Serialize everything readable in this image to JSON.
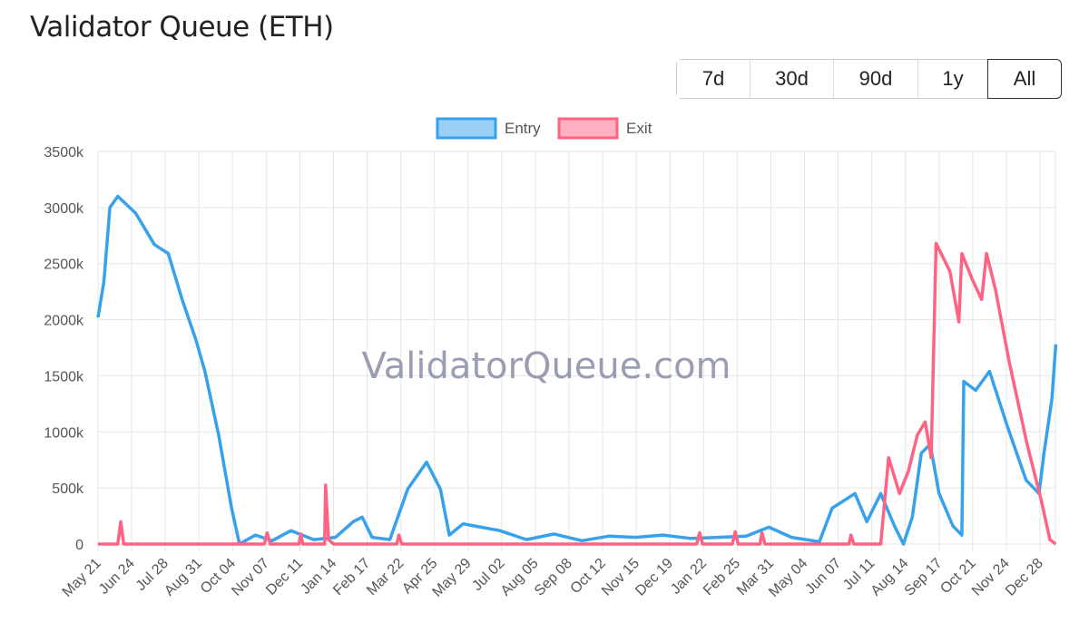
{
  "header": {
    "title": "Validator Queue (ETH)"
  },
  "range_buttons": [
    {
      "label": "7d"
    },
    {
      "label": "30d"
    },
    {
      "label": "90d"
    },
    {
      "label": "1y"
    },
    {
      "label": "All",
      "selected": true
    }
  ],
  "chart_data": {
    "type": "line",
    "title": "Validator Queue (ETH)",
    "watermark": "ValidatorQueue.com",
    "legend_position": "top",
    "grid": true,
    "ylim": [
      0,
      3500000
    ],
    "y_ticks": [
      "0",
      "500k",
      "1000k",
      "1500k",
      "2000k",
      "2500k",
      "3000k",
      "3500k"
    ],
    "y_tick_values": [
      0,
      500000,
      1000000,
      1500000,
      2000000,
      2500000,
      3000000,
      3500000
    ],
    "x_ticks": [
      {
        "label": "May 21",
        "date": "2023-05-21"
      },
      {
        "label": "Jun 24",
        "date": "2023-06-24"
      },
      {
        "label": "Jul 28",
        "date": "2023-07-28"
      },
      {
        "label": "Aug 31",
        "date": "2023-08-31"
      },
      {
        "label": "Oct 04",
        "date": "2023-10-04"
      },
      {
        "label": "Nov 07",
        "date": "2023-11-07"
      },
      {
        "label": "Dec 11",
        "date": "2023-12-11"
      },
      {
        "label": "Jan 14",
        "date": "2024-01-14"
      },
      {
        "label": "Feb 17",
        "date": "2024-02-17"
      },
      {
        "label": "Mar 22",
        "date": "2024-03-22"
      },
      {
        "label": "Apr 25",
        "date": "2024-04-25"
      },
      {
        "label": "May 29",
        "date": "2024-05-29"
      },
      {
        "label": "Jul 02",
        "date": "2024-07-02"
      },
      {
        "label": "Aug 05",
        "date": "2024-08-05"
      },
      {
        "label": "Sep 08",
        "date": "2024-09-08"
      },
      {
        "label": "Oct 12",
        "date": "2024-10-12"
      },
      {
        "label": "Nov 15",
        "date": "2024-11-15"
      },
      {
        "label": "Dec 19",
        "date": "2024-12-19"
      },
      {
        "label": "Jan 22",
        "date": "2025-01-22"
      },
      {
        "label": "Feb 25",
        "date": "2025-02-25"
      },
      {
        "label": "Mar 31",
        "date": "2025-03-31"
      },
      {
        "label": "May 04",
        "date": "2025-05-04"
      },
      {
        "label": "Jun 07",
        "date": "2025-06-07"
      },
      {
        "label": "Jul 11",
        "date": "2025-07-11"
      },
      {
        "label": "Aug 14",
        "date": "2025-08-14"
      },
      {
        "label": "Sep 17",
        "date": "2025-09-17"
      },
      {
        "label": "Oct 21",
        "date": "2025-10-21"
      },
      {
        "label": "Nov 24",
        "date": "2025-11-24"
      },
      {
        "label": "Dec 28",
        "date": "2025-12-28"
      }
    ],
    "x_range": [
      "2023-05-21",
      "2026-01-13"
    ],
    "series": [
      {
        "name": "Entry",
        "color": "#36a2eb",
        "fill": "#9ad0f5",
        "points": [
          [
            "2023-05-21",
            2020000
          ],
          [
            "2023-05-27",
            2340000
          ],
          [
            "2023-06-02",
            3000000
          ],
          [
            "2023-06-10",
            3100000
          ],
          [
            "2023-06-28",
            2950000
          ],
          [
            "2023-07-17",
            2670000
          ],
          [
            "2023-07-31",
            2590000
          ],
          [
            "2023-08-14",
            2180000
          ],
          [
            "2023-08-28",
            1820000
          ],
          [
            "2023-09-06",
            1540000
          ],
          [
            "2023-09-20",
            970000
          ],
          [
            "2023-10-03",
            320000
          ],
          [
            "2023-10-11",
            0
          ],
          [
            "2023-10-27",
            80000
          ],
          [
            "2023-11-13",
            30000
          ],
          [
            "2023-12-02",
            120000
          ],
          [
            "2023-12-25",
            40000
          ],
          [
            "2024-01-16",
            60000
          ],
          [
            "2024-02-03",
            200000
          ],
          [
            "2024-02-12",
            240000
          ],
          [
            "2024-02-22",
            60000
          ],
          [
            "2024-03-11",
            40000
          ],
          [
            "2024-03-29",
            490000
          ],
          [
            "2024-04-17",
            730000
          ],
          [
            "2024-05-01",
            490000
          ],
          [
            "2024-05-10",
            80000
          ],
          [
            "2024-05-24",
            180000
          ],
          [
            "2024-06-11",
            150000
          ],
          [
            "2024-06-30",
            120000
          ],
          [
            "2024-07-27",
            40000
          ],
          [
            "2024-08-24",
            90000
          ],
          [
            "2024-09-21",
            30000
          ],
          [
            "2024-10-18",
            70000
          ],
          [
            "2024-11-14",
            60000
          ],
          [
            "2024-12-12",
            80000
          ],
          [
            "2025-01-09",
            50000
          ],
          [
            "2025-02-06",
            60000
          ],
          [
            "2025-03-06",
            70000
          ],
          [
            "2025-03-29",
            150000
          ],
          [
            "2025-04-21",
            60000
          ],
          [
            "2025-05-19",
            20000
          ],
          [
            "2025-06-01",
            320000
          ],
          [
            "2025-06-24",
            450000
          ],
          [
            "2025-07-06",
            200000
          ],
          [
            "2025-07-20",
            450000
          ],
          [
            "2025-08-03",
            160000
          ],
          [
            "2025-08-12",
            0
          ],
          [
            "2025-08-21",
            240000
          ],
          [
            "2025-08-30",
            810000
          ],
          [
            "2025-09-08",
            890000
          ],
          [
            "2025-09-17",
            450000
          ],
          [
            "2025-10-01",
            160000
          ],
          [
            "2025-10-10",
            80000
          ],
          [
            "2025-10-12",
            1450000
          ],
          [
            "2025-10-24",
            1370000
          ],
          [
            "2025-11-07",
            1540000
          ],
          [
            "2025-11-25",
            1050000
          ],
          [
            "2025-12-14",
            570000
          ],
          [
            "2025-12-27",
            450000
          ],
          [
            "2026-01-01",
            810000
          ],
          [
            "2026-01-09",
            1290000
          ],
          [
            "2026-01-13",
            1780000
          ]
        ]
      },
      {
        "name": "Exit",
        "color": "#ff6384",
        "fill": "#ffb1c1",
        "points": [
          [
            "2023-05-21",
            0
          ],
          [
            "2023-06-10",
            0
          ],
          [
            "2023-06-13",
            200000
          ],
          [
            "2023-06-16",
            0
          ],
          [
            "2023-11-05",
            0
          ],
          [
            "2023-11-08",
            100000
          ],
          [
            "2023-11-11",
            0
          ],
          [
            "2023-12-10",
            0
          ],
          [
            "2023-12-12",
            90000
          ],
          [
            "2023-12-14",
            0
          ],
          [
            "2024-01-05",
            0
          ],
          [
            "2024-01-06",
            525000
          ],
          [
            "2024-01-09",
            40000
          ],
          [
            "2024-01-14",
            0
          ],
          [
            "2024-03-18",
            0
          ],
          [
            "2024-03-20",
            80000
          ],
          [
            "2024-03-23",
            0
          ],
          [
            "2025-01-15",
            0
          ],
          [
            "2025-01-18",
            100000
          ],
          [
            "2025-01-21",
            0
          ],
          [
            "2025-02-20",
            0
          ],
          [
            "2025-02-23",
            110000
          ],
          [
            "2025-02-26",
            0
          ],
          [
            "2025-03-20",
            0
          ],
          [
            "2025-03-22",
            100000
          ],
          [
            "2025-03-25",
            0
          ],
          [
            "2025-06-18",
            0
          ],
          [
            "2025-06-20",
            80000
          ],
          [
            "2025-06-23",
            0
          ],
          [
            "2025-07-20",
            0
          ],
          [
            "2025-07-28",
            770000
          ],
          [
            "2025-08-08",
            450000
          ],
          [
            "2025-08-17",
            650000
          ],
          [
            "2025-08-26",
            970000
          ],
          [
            "2025-09-03",
            1090000
          ],
          [
            "2025-09-09",
            770000
          ],
          [
            "2025-09-14",
            2680000
          ],
          [
            "2025-09-28",
            2430000
          ],
          [
            "2025-10-07",
            1980000
          ],
          [
            "2025-10-10",
            2590000
          ],
          [
            "2025-10-21",
            2350000
          ],
          [
            "2025-10-30",
            2180000
          ],
          [
            "2025-11-04",
            2590000
          ],
          [
            "2025-11-13",
            2270000
          ],
          [
            "2025-11-27",
            1620000
          ],
          [
            "2025-12-15",
            890000
          ],
          [
            "2025-12-29",
            400000
          ],
          [
            "2026-01-07",
            40000
          ],
          [
            "2026-01-13",
            0
          ]
        ]
      }
    ]
  }
}
